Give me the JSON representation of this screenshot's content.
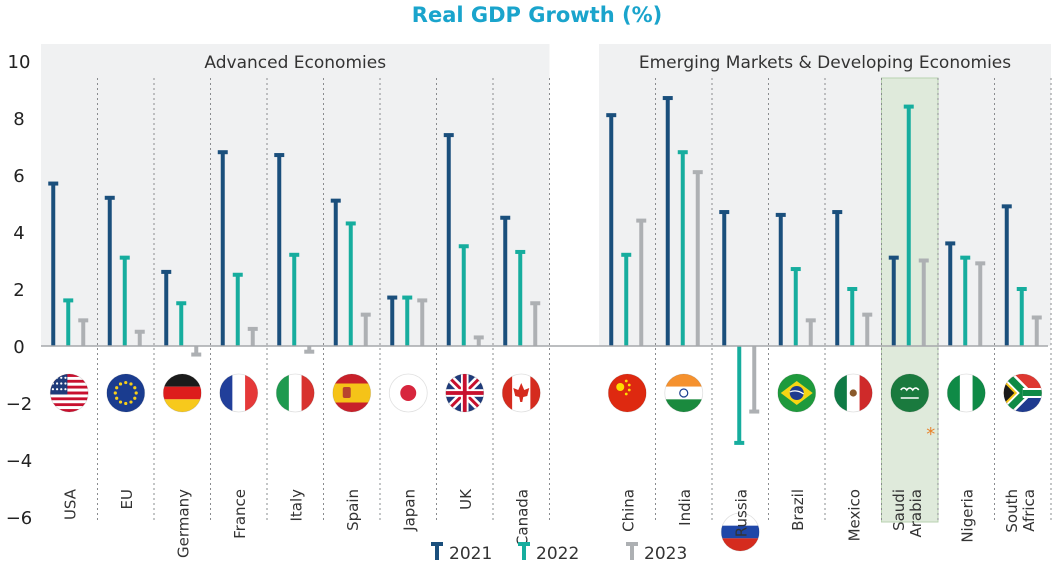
{
  "chart_data": {
    "type": "bar",
    "title": "Real GDP Growth (%)",
    "ylim": [
      -6,
      10
    ],
    "yticks": [
      10,
      8,
      6,
      4,
      2,
      0,
      -2,
      -4,
      -6
    ],
    "series": [
      {
        "name": "2021",
        "color": "#1a4f7c"
      },
      {
        "name": "2022",
        "color": "#16ad9e"
      },
      {
        "name": "2023",
        "color": "#adb0b3"
      }
    ],
    "groups": [
      {
        "label": "Advanced Economies",
        "first": 0,
        "last": 8
      },
      {
        "label": "Emerging Markets & Developing Economies",
        "first": 9,
        "last": 16
      }
    ],
    "categories": [
      {
        "label": "USA",
        "flag": "usa",
        "values": [
          5.7,
          1.6,
          0.9
        ]
      },
      {
        "label": "EU",
        "flag": "eu",
        "values": [
          5.2,
          3.1,
          0.5
        ]
      },
      {
        "label": "Germany",
        "flag": "germany",
        "values": [
          2.6,
          1.5,
          -0.3
        ]
      },
      {
        "label": "France",
        "flag": "france",
        "values": [
          6.8,
          2.5,
          0.6
        ]
      },
      {
        "label": "Italy",
        "flag": "italy",
        "values": [
          6.7,
          3.2,
          -0.2
        ]
      },
      {
        "label": "Spain",
        "flag": "spain",
        "values": [
          5.1,
          4.3,
          1.1
        ]
      },
      {
        "label": "Japan",
        "flag": "japan",
        "values": [
          1.7,
          1.7,
          1.6
        ]
      },
      {
        "label": "UK",
        "flag": "uk",
        "values": [
          7.4,
          3.5,
          0.3
        ]
      },
      {
        "label": "Canada",
        "flag": "canada",
        "values": [
          4.5,
          3.3,
          1.5
        ]
      },
      {
        "label": "China",
        "flag": "china",
        "values": [
          8.1,
          3.2,
          4.4
        ]
      },
      {
        "label": "India",
        "flag": "india",
        "values": [
          8.7,
          6.8,
          6.1
        ]
      },
      {
        "label": "Russia",
        "flag": "russia",
        "values": [
          4.7,
          -3.4,
          -2.3
        ]
      },
      {
        "label": "Brazil",
        "flag": "brazil",
        "values": [
          4.6,
          2.7,
          0.9
        ]
      },
      {
        "label": "Mexico",
        "flag": "mexico",
        "values": [
          4.7,
          2.0,
          1.1
        ]
      },
      {
        "label": "Saudi\nArabia",
        "flag": "saudi",
        "values": [
          3.1,
          8.4,
          3.0
        ],
        "highlight": true,
        "note": "*"
      },
      {
        "label": "Nigeria",
        "flag": "nigeria",
        "values": [
          3.6,
          3.1,
          2.9
        ]
      },
      {
        "label": "South\nAfrica",
        "flag": "southafrica",
        "values": [
          4.9,
          2.0,
          1.0
        ]
      }
    ],
    "colors": {
      "title": "#1aa4cc",
      "group_bg": "#f0f1f2",
      "highlight_bg": "#dfeadb",
      "highlight_border": "#b9d2b0",
      "zero_line": "#a6a8ab",
      "divider": "#8a8c8f",
      "note": "#e8822a"
    }
  }
}
